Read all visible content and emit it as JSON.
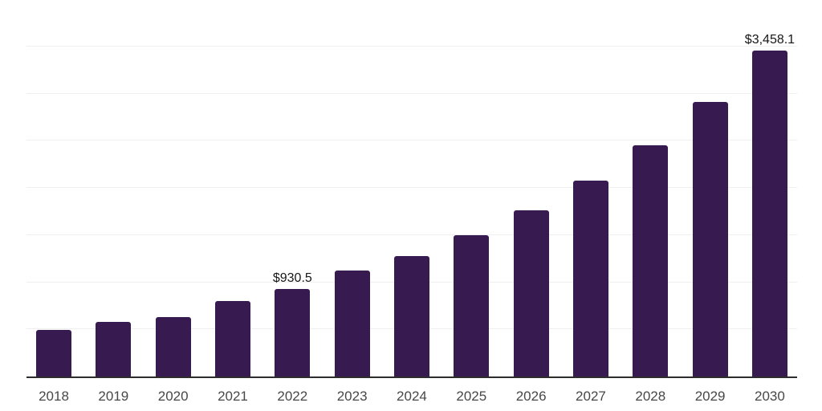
{
  "chart_data": {
    "type": "bar",
    "title": "",
    "categories": [
      "2018",
      "2019",
      "2020",
      "2021",
      "2022",
      "2023",
      "2024",
      "2025",
      "2026",
      "2027",
      "2028",
      "2029",
      "2030"
    ],
    "values": [
      495,
      580,
      630,
      800,
      930.5,
      1120,
      1275,
      1500,
      1760,
      2075,
      2455,
      2915,
      3458.1
    ],
    "value_labels": [
      null,
      null,
      null,
      null,
      "$930.5",
      null,
      null,
      null,
      null,
      null,
      null,
      null,
      "$3,458.1"
    ],
    "ylim": [
      0,
      4009
    ],
    "gridline_step": 500,
    "gridline_max": 4000,
    "grid": "horizontal-only",
    "legend": "none",
    "x_axis_labels_visible": true,
    "y_axis_labels_visible": false
  },
  "colors": {
    "bar": "#361a50",
    "axis_line": "#2d2d2d",
    "gridline": "#efefef",
    "x_label": "#474747",
    "value_label": "#161616",
    "background": "#ffffff"
  }
}
